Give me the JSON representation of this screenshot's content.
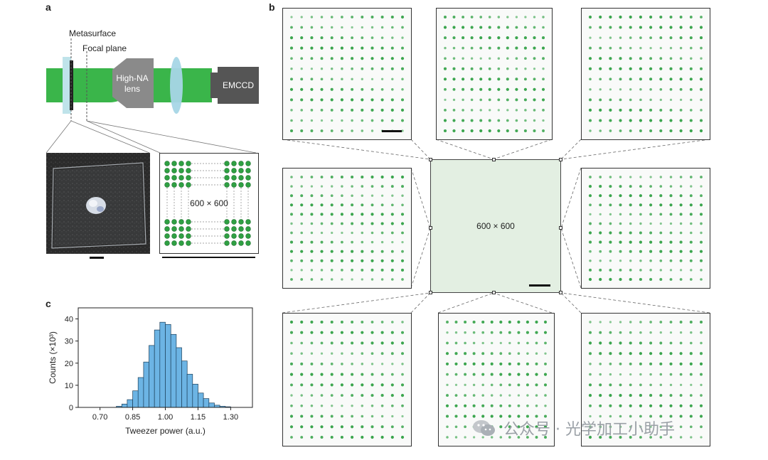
{
  "panel_a": {
    "label": "a",
    "metasurface_label": "Metasurface",
    "focal_plane_label": "Focal plane",
    "lens_label_line1": "High-NA",
    "lens_label_line2": "lens",
    "camera_label": "EMCCD",
    "array_label": "600 × 600"
  },
  "panel_b": {
    "label": "b",
    "center_label": "600 × 600"
  },
  "panel_c": {
    "label": "c"
  },
  "chart_data": {
    "type": "bar",
    "xlabel": "Tweezer power (a.u.)",
    "ylabel": "Counts (×10³)",
    "xlim": [
      0.6,
      1.4
    ],
    "ylim": [
      0,
      45
    ],
    "xticks": [
      "0.70",
      "0.85",
      "1.00",
      "1.15",
      "1.30"
    ],
    "yticks": [
      "0",
      "10",
      "20",
      "30",
      "40"
    ],
    "bin_width": 0.025,
    "bin_starts": [
      0.775,
      0.8,
      0.825,
      0.85,
      0.875,
      0.9,
      0.925,
      0.95,
      0.975,
      1.0,
      1.025,
      1.05,
      1.075,
      1.1,
      1.125,
      1.15,
      1.175,
      1.2,
      1.225,
      1.25,
      1.275
    ],
    "values": [
      0.5,
      1.5,
      3.5,
      7.5,
      13.5,
      20.5,
      28,
      35,
      38.5,
      37.5,
      33,
      27,
      21,
      15,
      10.5,
      6.5,
      4,
      2,
      1,
      0.5,
      0.3
    ],
    "color": "#6cb4e4"
  },
  "watermark": {
    "text": "公众号 · 光学加工小助手"
  },
  "colors": {
    "beam": "#3ab54a",
    "spot": "#2fa043",
    "lens_gray": "#8a8a8a",
    "camera": "#555555",
    "metasurface_glass": "#bfe3ea"
  }
}
